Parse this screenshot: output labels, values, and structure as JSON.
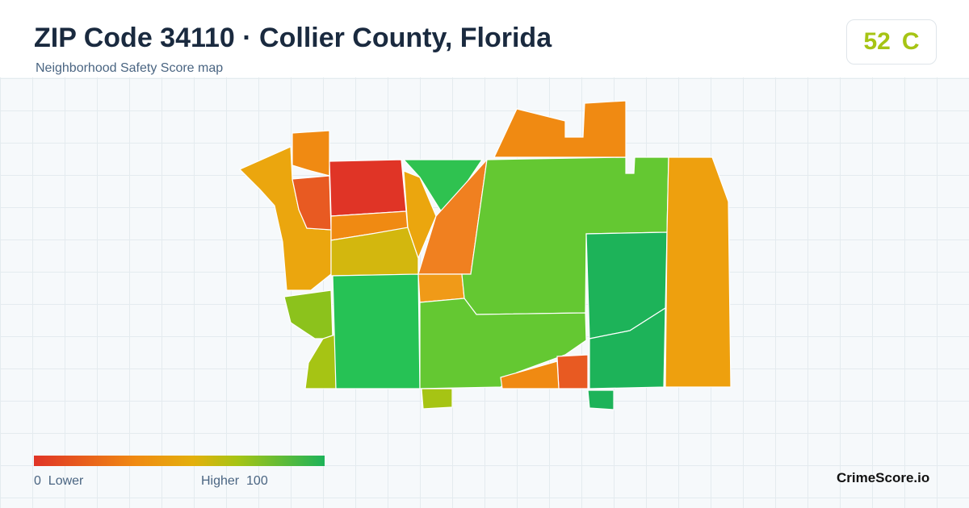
{
  "header": {
    "title": "ZIP Code 34110 · Collier County, Florida",
    "subtitle": "Neighborhood Safety Score map"
  },
  "score": {
    "value": 52,
    "grade": "C"
  },
  "legend": {
    "min": 0,
    "min_label": "Lower",
    "max_label": "Higher",
    "max": 100
  },
  "brand": "CrimeScore.io"
}
